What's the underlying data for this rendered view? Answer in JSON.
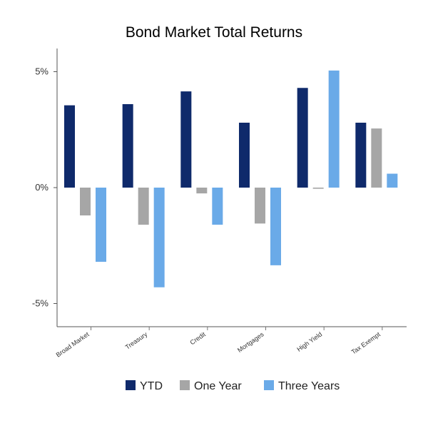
{
  "chart_data": {
    "type": "bar",
    "title": "Bond Market Total Returns",
    "categories": [
      "Broad Market",
      "Treasury",
      "Credit",
      "Mortgages",
      "High Yield",
      "Tax Exempt"
    ],
    "series": [
      {
        "name": "YTD",
        "color": "#0f2a6b",
        "values": [
          3.55,
          3.6,
          4.15,
          2.8,
          4.3,
          2.8
        ]
      },
      {
        "name": "One Year",
        "color": "#a6a6a6",
        "values": [
          -1.2,
          -1.6,
          -0.25,
          -1.55,
          -0.05,
          2.55
        ]
      },
      {
        "name": "Three Years",
        "color": "#6aaae8",
        "values": [
          -3.2,
          -4.3,
          -1.6,
          -3.35,
          5.05,
          0.6
        ]
      }
    ],
    "ylim": [
      -6,
      6
    ],
    "yticks": [
      5,
      0,
      -5
    ],
    "ytick_labels": [
      "5%",
      "0%",
      "-5%"
    ],
    "xlabel": "",
    "ylabel": "",
    "grid": false,
    "legend_position": "bottom"
  }
}
